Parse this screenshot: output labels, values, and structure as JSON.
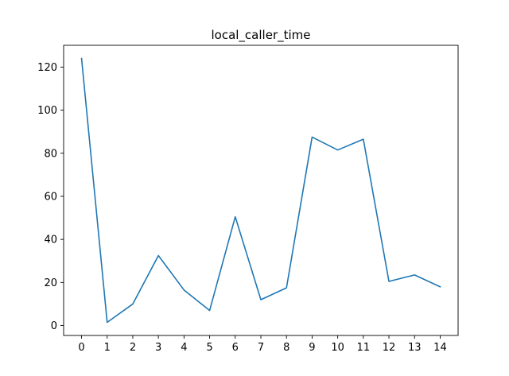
{
  "chart_data": {
    "type": "line",
    "title": "local_caller_time",
    "xlabel": "",
    "ylabel": "",
    "x": [
      0,
      1,
      2,
      3,
      4,
      5,
      6,
      7,
      8,
      9,
      10,
      11,
      12,
      13,
      14
    ],
    "series": [
      {
        "values": [
          124,
          1.5,
          10,
          32.5,
          16.5,
          7,
          50.5,
          12,
          17.5,
          87.5,
          81.5,
          86.5,
          20.5,
          23.5,
          18
        ],
        "color": "#1f77b4"
      }
    ],
    "xticks": [
      0,
      1,
      2,
      3,
      4,
      5,
      6,
      7,
      8,
      9,
      10,
      11,
      12,
      13,
      14
    ],
    "yticks": [
      0,
      20,
      40,
      60,
      80,
      100,
      120
    ],
    "xlim": [
      -0.7,
      14.7
    ],
    "ylim": [
      -4.6,
      130.1
    ],
    "grid": false,
    "legend": "none"
  }
}
